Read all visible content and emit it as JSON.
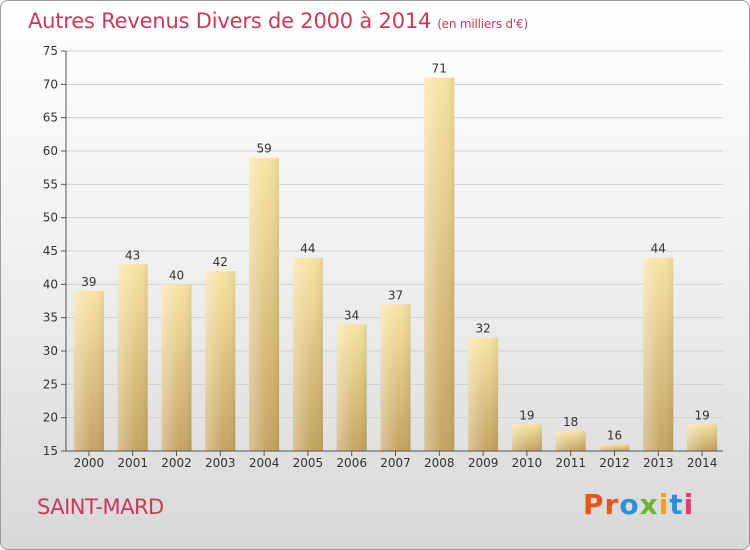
{
  "header": {
    "title": "Autres Revenus Divers de 2000 à 2014",
    "subtitle": "(en milliers d'€)"
  },
  "footer": {
    "place": "SAINT-MARD",
    "logo_text": "Proxiti"
  },
  "colors": {
    "title": "#c8395a",
    "bar_light": "#f7e1a0",
    "bar_dark": "#c8a865",
    "logo_letters": [
      "#e8541a",
      "#e8541a",
      "#2d8fd5",
      "#6cb431",
      "#f0a020",
      "#2d8fd5",
      "#e83a78"
    ]
  },
  "chart_data": {
    "type": "bar",
    "title": "Autres Revenus Divers de 2000 à 2014",
    "categories": [
      "2000",
      "2001",
      "2002",
      "2003",
      "2004",
      "2005",
      "2006",
      "2007",
      "2008",
      "2009",
      "2010",
      "2011",
      "2012",
      "2013",
      "2014"
    ],
    "values": [
      39,
      43,
      40,
      42,
      59,
      44,
      34,
      37,
      71,
      32,
      19,
      18,
      16,
      44,
      19
    ],
    "ylim": [
      15,
      75
    ],
    "yticks": [
      15,
      20,
      25,
      30,
      35,
      40,
      45,
      50,
      55,
      60,
      65,
      70,
      75
    ],
    "grid": true,
    "legend": "none"
  }
}
